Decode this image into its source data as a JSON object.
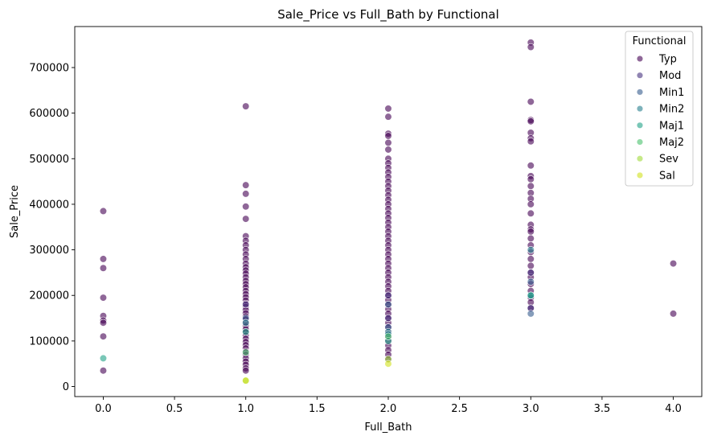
{
  "chart_data": {
    "type": "scatter",
    "title": "Sale_Price vs Full_Bath by Functional",
    "xlabel": "Full_Bath",
    "ylabel": "Sale_Price",
    "xlim": [
      -0.2,
      4.2
    ],
    "ylim": [
      -22000,
      790000
    ],
    "xticks": [
      0.0,
      0.5,
      1.0,
      1.5,
      2.0,
      2.5,
      3.0,
      3.5,
      4.0
    ],
    "xtick_labels": [
      "0.0",
      "0.5",
      "1.0",
      "1.5",
      "2.0",
      "2.5",
      "3.0",
      "3.5",
      "4.0"
    ],
    "yticks": [
      0,
      100000,
      200000,
      300000,
      400000,
      500000,
      600000,
      700000
    ],
    "ytick_labels": [
      "0",
      "100000",
      "200000",
      "300000",
      "400000",
      "500000",
      "600000",
      "700000"
    ],
    "grid": false,
    "legend": {
      "title": "Functional",
      "placement": "top-right"
    },
    "series": [
      {
        "name": "Typ",
        "color": "#440154",
        "points": [
          [
            0,
            385000
          ],
          [
            0,
            280000
          ],
          [
            0,
            260000
          ],
          [
            0,
            195000
          ],
          [
            0,
            155000
          ],
          [
            0,
            145000
          ],
          [
            0,
            140000
          ],
          [
            0,
            110000
          ],
          [
            0,
            35000
          ],
          [
            1,
            615000
          ],
          [
            1,
            442000
          ],
          [
            1,
            423000
          ],
          [
            1,
            395000
          ],
          [
            1,
            368000
          ],
          [
            1,
            330000
          ],
          [
            1,
            320000
          ],
          [
            1,
            310000
          ],
          [
            1,
            300000
          ],
          [
            1,
            290000
          ],
          [
            1,
            280000
          ],
          [
            1,
            270000
          ],
          [
            1,
            262000
          ],
          [
            1,
            255000
          ],
          [
            1,
            248000
          ],
          [
            1,
            240000
          ],
          [
            1,
            232000
          ],
          [
            1,
            225000
          ],
          [
            1,
            218000
          ],
          [
            1,
            210000
          ],
          [
            1,
            203000
          ],
          [
            1,
            196000
          ],
          [
            1,
            189000
          ],
          [
            1,
            182000
          ],
          [
            1,
            175000
          ],
          [
            1,
            168000
          ],
          [
            1,
            161000
          ],
          [
            1,
            154000
          ],
          [
            1,
            147000
          ],
          [
            1,
            140000
          ],
          [
            1,
            133000
          ],
          [
            1,
            126000
          ],
          [
            1,
            119000
          ],
          [
            1,
            112000
          ],
          [
            1,
            105000
          ],
          [
            1,
            98000
          ],
          [
            1,
            91000
          ],
          [
            1,
            84000
          ],
          [
            1,
            77000
          ],
          [
            1,
            70000
          ],
          [
            1,
            62000
          ],
          [
            1,
            55000
          ],
          [
            1,
            48000
          ],
          [
            1,
            40000
          ],
          [
            1,
            35000
          ],
          [
            2,
            610000
          ],
          [
            2,
            592000
          ],
          [
            2,
            555000
          ],
          [
            2,
            550000
          ],
          [
            2,
            535000
          ],
          [
            2,
            520000
          ],
          [
            2,
            500000
          ],
          [
            2,
            490000
          ],
          [
            2,
            480000
          ],
          [
            2,
            470000
          ],
          [
            2,
            460000
          ],
          [
            2,
            450000
          ],
          [
            2,
            440000
          ],
          [
            2,
            430000
          ],
          [
            2,
            420000
          ],
          [
            2,
            410000
          ],
          [
            2,
            400000
          ],
          [
            2,
            390000
          ],
          [
            2,
            380000
          ],
          [
            2,
            370000
          ],
          [
            2,
            360000
          ],
          [
            2,
            350000
          ],
          [
            2,
            340000
          ],
          [
            2,
            330000
          ],
          [
            2,
            320000
          ],
          [
            2,
            310000
          ],
          [
            2,
            300000
          ],
          [
            2,
            290000
          ],
          [
            2,
            280000
          ],
          [
            2,
            270000
          ],
          [
            2,
            260000
          ],
          [
            2,
            250000
          ],
          [
            2,
            240000
          ],
          [
            2,
            230000
          ],
          [
            2,
            220000
          ],
          [
            2,
            210000
          ],
          [
            2,
            200000
          ],
          [
            2,
            190000
          ],
          [
            2,
            180000
          ],
          [
            2,
            170000
          ],
          [
            2,
            160000
          ],
          [
            2,
            150000
          ],
          [
            2,
            140000
          ],
          [
            2,
            130000
          ],
          [
            2,
            120000
          ],
          [
            2,
            110000
          ],
          [
            2,
            100000
          ],
          [
            2,
            90000
          ],
          [
            2,
            80000
          ],
          [
            2,
            70000
          ],
          [
            2,
            60000
          ],
          [
            3,
            755000
          ],
          [
            3,
            745000
          ],
          [
            3,
            625000
          ],
          [
            3,
            585000
          ],
          [
            3,
            582000
          ],
          [
            3,
            557000
          ],
          [
            3,
            545000
          ],
          [
            3,
            538000
          ],
          [
            3,
            485000
          ],
          [
            3,
            462000
          ],
          [
            3,
            455000
          ],
          [
            3,
            440000
          ],
          [
            3,
            425000
          ],
          [
            3,
            412000
          ],
          [
            3,
            400000
          ],
          [
            3,
            380000
          ],
          [
            3,
            355000
          ],
          [
            3,
            345000
          ],
          [
            3,
            340000
          ],
          [
            3,
            325000
          ],
          [
            3,
            310000
          ],
          [
            3,
            295000
          ],
          [
            3,
            280000
          ],
          [
            3,
            265000
          ],
          [
            3,
            250000
          ],
          [
            3,
            240000
          ],
          [
            3,
            225000
          ],
          [
            3,
            210000
          ],
          [
            3,
            195000
          ],
          [
            3,
            185000
          ],
          [
            3,
            172000
          ],
          [
            4,
            270000
          ],
          [
            4,
            160000
          ]
        ]
      },
      {
        "name": "Mod",
        "color": "#46327e",
        "points": [
          [
            1,
            180000
          ],
          [
            2,
            200000
          ],
          [
            2,
            150000
          ],
          [
            3,
            250000
          ],
          [
            3,
            172000
          ]
        ]
      },
      {
        "name": "Min1",
        "color": "#365c8d",
        "points": [
          [
            1,
            150000
          ],
          [
            2,
            180000
          ],
          [
            2,
            130000
          ],
          [
            3,
            160000
          ],
          [
            3,
            230000
          ]
        ]
      },
      {
        "name": "Min2",
        "color": "#277f8e",
        "points": [
          [
            1,
            140000
          ],
          [
            2,
            120000
          ],
          [
            2,
            115000
          ],
          [
            3,
            200000
          ],
          [
            3,
            300000
          ]
        ]
      },
      {
        "name": "Maj1",
        "color": "#1fa187",
        "points": [
          [
            0,
            62000
          ],
          [
            1,
            120000
          ],
          [
            2,
            100000
          ],
          [
            3,
            200000
          ]
        ]
      },
      {
        "name": "Maj2",
        "color": "#4ac16d",
        "points": [
          [
            1,
            75000
          ],
          [
            2,
            110000
          ]
        ]
      },
      {
        "name": "Sev",
        "color": "#a0da39",
        "points": [
          [
            1,
            13000
          ],
          [
            2,
            60000
          ]
        ]
      },
      {
        "name": "Sal",
        "color": "#d0e11c",
        "points": [
          [
            1,
            13000
          ],
          [
            2,
            50000
          ]
        ]
      }
    ]
  }
}
